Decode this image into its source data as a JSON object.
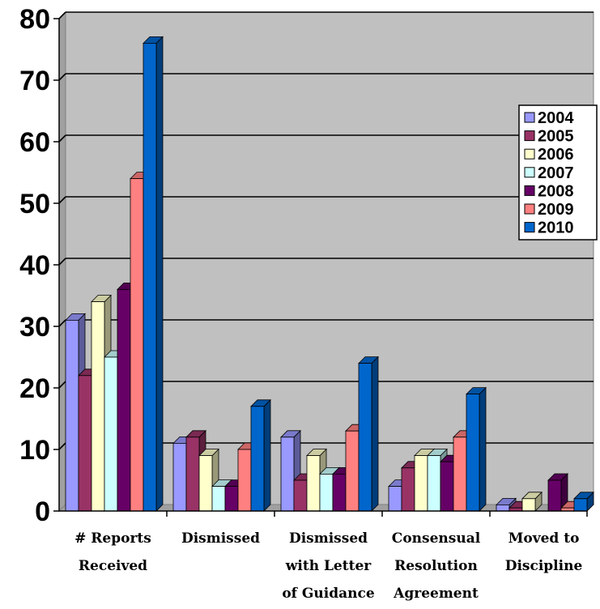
{
  "chart_data": {
    "type": "bar",
    "title": "",
    "xlabel": "",
    "ylabel": "",
    "ylim": [
      0,
      80
    ],
    "yticks": [
      0,
      10,
      20,
      30,
      40,
      50,
      60,
      70,
      80
    ],
    "grid": true,
    "legend_position": "right",
    "categories": [
      [
        "# Reports",
        "Received"
      ],
      [
        "Dismissed"
      ],
      [
        "Dismissed",
        "with Letter",
        "of Guidance"
      ],
      [
        "Consensual",
        "Resolution",
        "Agreement"
      ],
      [
        "Moved to",
        "Discipline"
      ]
    ],
    "series": [
      {
        "name": "2004",
        "color": "#9999ff",
        "values": [
          31,
          11,
          12,
          4,
          1
        ]
      },
      {
        "name": "2005",
        "color": "#993366",
        "values": [
          22,
          12,
          5,
          7,
          0.5
        ]
      },
      {
        "name": "2006",
        "color": "#ffffcc",
        "values": [
          34,
          9,
          9,
          9,
          2
        ]
      },
      {
        "name": "2007",
        "color": "#ccffff",
        "values": [
          25,
          4,
          6,
          9,
          0
        ]
      },
      {
        "name": "2008",
        "color": "#660066",
        "values": [
          36,
          4,
          6,
          8,
          5
        ]
      },
      {
        "name": "2009",
        "color": "#ff8080",
        "values": [
          54,
          10,
          13,
          12,
          0.5
        ]
      },
      {
        "name": "2010",
        "color": "#0066cc",
        "values": [
          76,
          17,
          24,
          19,
          2
        ]
      }
    ]
  }
}
